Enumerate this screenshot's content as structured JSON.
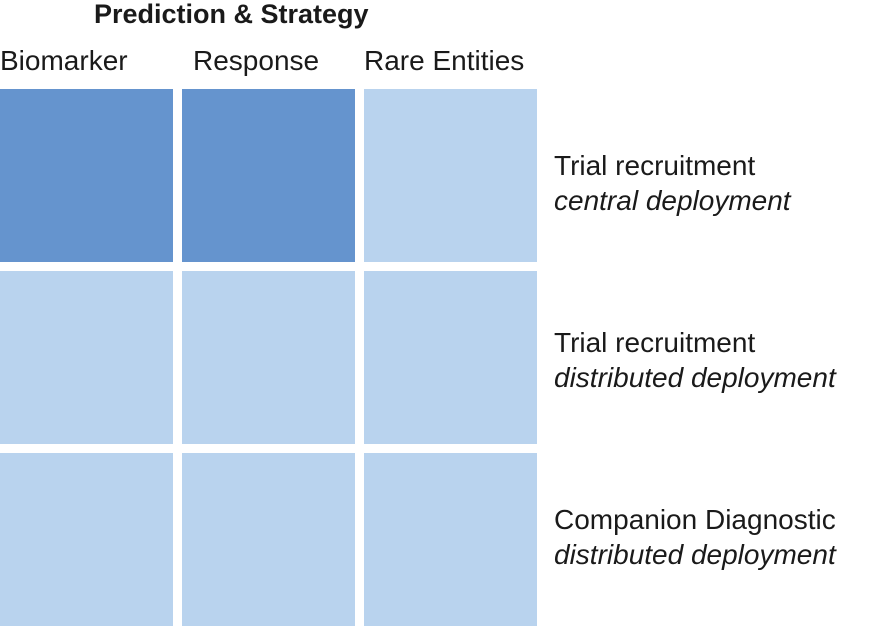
{
  "title": "Prediction & Strategy",
  "columns": [
    "Biomarker",
    "Response",
    "Rare Entities"
  ],
  "rows": [
    {
      "title": "Trial recruitment",
      "subtitle": "central deployment"
    },
    {
      "title": "Trial recruitment",
      "subtitle": "distributed deployment"
    },
    {
      "title": "Companion Diagnostic",
      "subtitle": "distributed deployment"
    }
  ],
  "colors": {
    "highlight": "#6594ce",
    "base": "#b9d3ee"
  },
  "highlighted_cells": [
    [
      0,
      0
    ],
    [
      0,
      1
    ]
  ]
}
